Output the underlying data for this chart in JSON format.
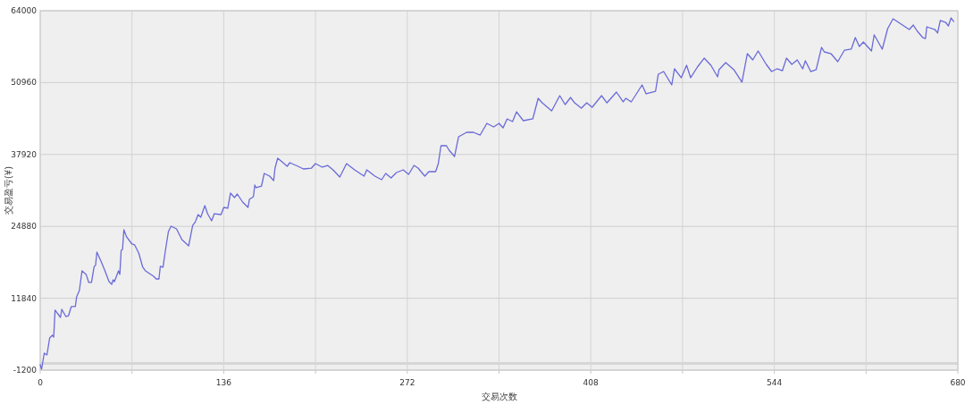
{
  "chart_data": {
    "type": "line",
    "xlabel": "交易次数",
    "ylabel": "交易盈亏(¥)",
    "xlim": [
      0,
      680
    ],
    "xticks": [
      0,
      {
        "value": 68,
        "label": null
      },
      136,
      {
        "value": 204,
        "label": null
      },
      272,
      {
        "value": 340,
        "label": null
      },
      408,
      {
        "value": 476,
        "label": null
      },
      544,
      {
        "value": 612,
        "label": null
      },
      680
    ],
    "ylim": [
      -1200,
      64000
    ],
    "yticks": [
      -1200,
      11840,
      24880,
      37920,
      50960,
      64000
    ],
    "grid": true,
    "ref_lines": [
      {
        "axis": "y",
        "value": 0,
        "color": "#d6d6d6"
      }
    ],
    "series": [
      {
        "color": "#6a6ad8",
        "x": [
          0,
          1,
          3,
          5,
          7,
          9,
          10,
          11,
          15,
          16,
          19,
          21,
          23,
          26,
          27,
          29,
          31,
          34,
          36,
          38,
          40,
          41,
          42,
          45,
          48,
          51,
          53,
          54,
          55,
          58,
          59,
          60,
          61,
          62,
          64,
          68,
          70,
          73,
          76,
          78,
          84,
          86,
          88,
          89,
          91,
          93,
          95,
          97,
          101,
          105,
          110,
          113,
          115,
          117,
          119,
          122,
          124,
          127,
          129,
          134,
          136,
          139,
          141,
          144,
          146,
          150,
          154,
          155,
          158,
          159,
          160,
          164,
          166,
          170,
          173,
          174,
          176,
          180,
          183,
          185,
          191,
          195,
          201,
          204,
          209,
          213,
          217,
          222,
          227,
          233,
          240,
          242,
          248,
          253,
          256,
          260,
          264,
          269,
          273,
          277,
          280,
          285,
          288,
          293,
          295,
          297,
          301,
          303,
          307,
          310,
          316,
          321,
          326,
          331,
          336,
          340,
          343,
          346,
          350,
          353,
          358,
          365,
          369,
          372,
          379,
          385,
          389,
          393,
          396,
          401,
          405,
          409,
          416,
          420,
          427,
          432,
          434,
          438,
          446,
          449,
          456,
          458,
          462,
          468,
          470,
          475,
          479,
          482,
          487,
          492,
          497,
          502,
          503,
          508,
          514,
          520,
          524,
          528,
          532,
          538,
          542,
          546,
          550,
          553,
          557,
          561,
          565,
          567,
          571,
          575,
          579,
          581,
          586,
          591,
          596,
          601,
          604,
          607,
          610,
          613,
          616,
          618,
          621,
          624,
          628,
          632,
          637,
          644,
          647,
          650,
          654,
          656,
          657,
          663,
          665,
          667,
          671,
          673,
          675,
          677
        ],
        "values": [
          -220,
          -1030,
          1880,
          1560,
          4640,
          5130,
          4800,
          9670,
          8370,
          9830,
          8530,
          8690,
          10320,
          10320,
          12100,
          13240,
          16810,
          16170,
          14700,
          14700,
          17620,
          17780,
          20210,
          18590,
          16810,
          14860,
          14370,
          15180,
          14860,
          16810,
          16170,
          20530,
          20700,
          24260,
          22970,
          21670,
          21510,
          20050,
          17460,
          16810,
          15830,
          15340,
          15340,
          17620,
          17460,
          20860,
          23940,
          24910,
          24430,
          22480,
          21340,
          25070,
          25720,
          27020,
          26530,
          28640,
          27180,
          25890,
          27180,
          27020,
          28320,
          28160,
          30910,
          30100,
          30750,
          29290,
          28320,
          29780,
          30260,
          32370,
          31890,
          32210,
          34480,
          33990,
          33180,
          35450,
          37240,
          36430,
          35780,
          36430,
          35780,
          35290,
          35450,
          36270,
          35620,
          35940,
          35130,
          33830,
          36270,
          35130,
          33990,
          35130,
          33990,
          33350,
          34480,
          33670,
          34640,
          35130,
          34320,
          35940,
          35450,
          33990,
          34810,
          34810,
          36270,
          39510,
          39510,
          38700,
          37560,
          41130,
          41940,
          41940,
          41450,
          43560,
          42920,
          43560,
          42750,
          44380,
          43890,
          45670,
          44050,
          44380,
          48110,
          47290,
          45830,
          48590,
          46970,
          48270,
          47290,
          46320,
          47290,
          46480,
          48590,
          47290,
          49240,
          47460,
          48110,
          47460,
          50540,
          48920,
          49400,
          52480,
          52970,
          50540,
          53460,
          51840,
          54110,
          51840,
          53780,
          55400,
          54110,
          52000,
          53300,
          54590,
          53300,
          51030,
          56210,
          55080,
          56700,
          54270,
          52970,
          53460,
          53130,
          55400,
          54270,
          55080,
          53460,
          54920,
          52970,
          53300,
          57350,
          56540,
          56210,
          54760,
          56860,
          57030,
          59130,
          57510,
          58320,
          57510,
          56700,
          59620,
          58320,
          57030,
          60760,
          62540,
          61730,
          60590,
          61400,
          60270,
          59130,
          58970,
          61080,
          60590,
          59950,
          62220,
          61890,
          61240,
          62700,
          62050
        ]
      }
    ]
  }
}
